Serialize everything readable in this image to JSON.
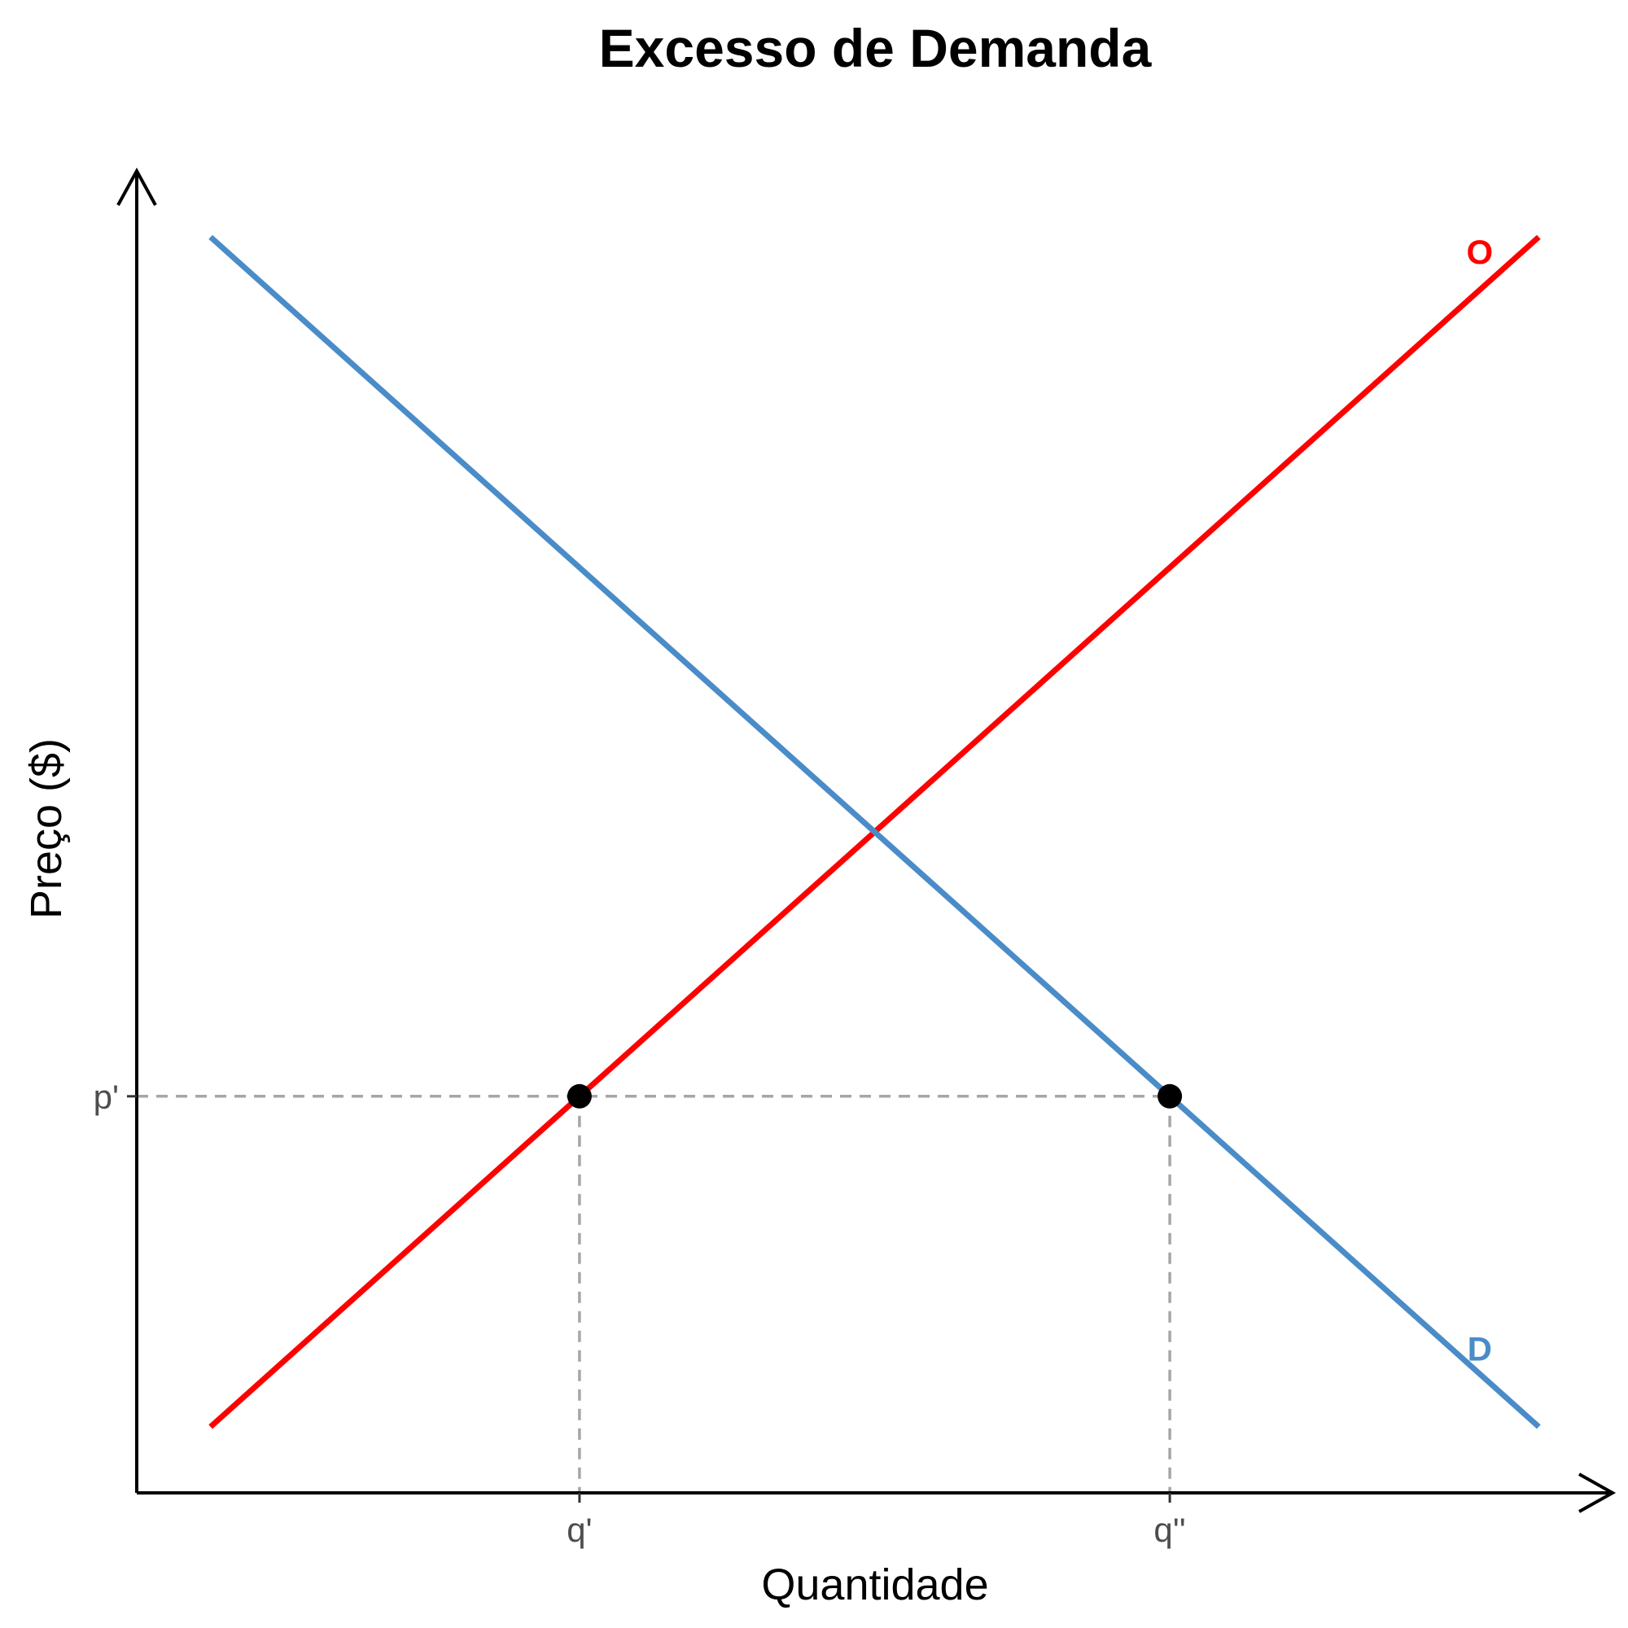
{
  "chart_data": {
    "type": "line",
    "title": "Excesso de Demanda",
    "xlabel": "Quantidade",
    "ylabel": "Preço ($)",
    "xlim": [
      0,
      10
    ],
    "ylim": [
      0,
      10
    ],
    "grid": false,
    "series": [
      {
        "name": "O",
        "color": "#ff0000",
        "x": [
          0.5,
          9.5
        ],
        "y": [
          0.5,
          9.5
        ]
      },
      {
        "name": "D",
        "color": "#4a8cc8",
        "x": [
          0.5,
          9.5
        ],
        "y": [
          9.5,
          0.5
        ]
      }
    ],
    "points": [
      {
        "x": 3,
        "y": 3
      },
      {
        "x": 7,
        "y": 3
      }
    ],
    "x_ticks": [
      {
        "value": 3,
        "label": "q'"
      },
      {
        "value": 7,
        "label": "q''"
      }
    ],
    "y_ticks": [
      {
        "value": 3,
        "label": "p'"
      }
    ]
  }
}
